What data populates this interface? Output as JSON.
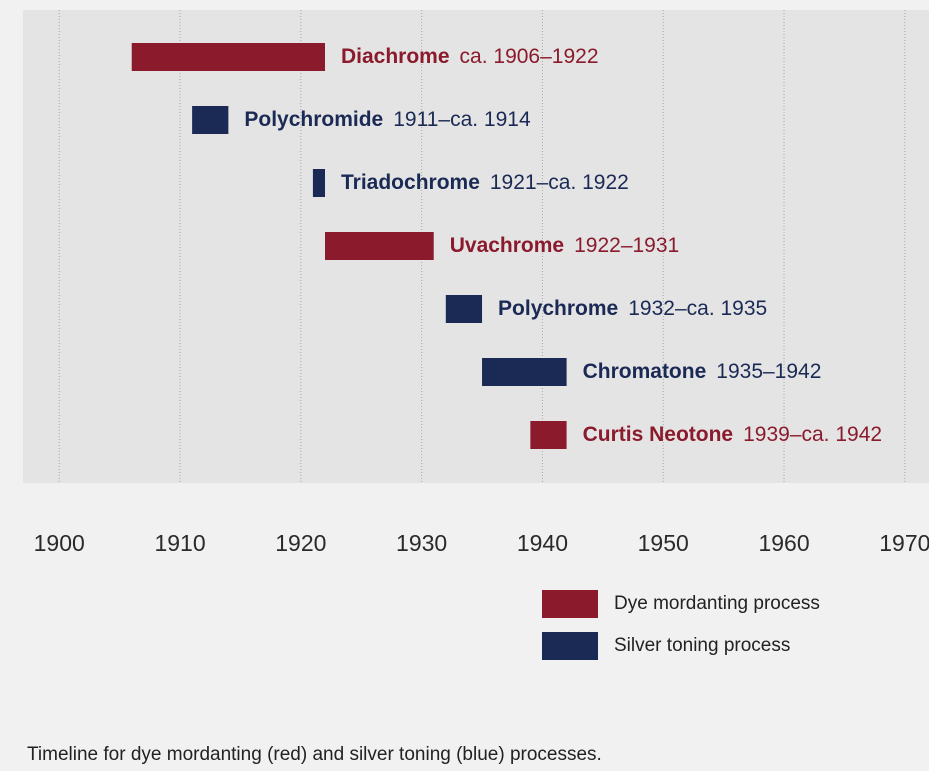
{
  "chart_data": {
    "type": "timeline",
    "caption": "Timeline for dye mordanting (red) and silver toning (blue) processes.",
    "categories": [
      "Diachrome",
      "Polychromide",
      "Triadochrome",
      "Uvachrome",
      "Polychrome",
      "Chromatone",
      "Curtis Neotone"
    ],
    "date_labels": [
      "ca. 1906–1922",
      "1911–ca. 1914",
      "1921–ca. 1922",
      "1922–1931",
      "1932–ca. 1935",
      "1935–1942",
      "1939–ca. 1942"
    ],
    "start": [
      1906,
      1911,
      1921,
      1922,
      1932,
      1935,
      1939
    ],
    "end": [
      1922,
      1914,
      1922,
      1931,
      1935,
      1942,
      1942
    ],
    "colors": [
      "#8a1a2c",
      "#1b2a55",
      "#1b2a55",
      "#8a1a2c",
      "#1b2a55",
      "#1b2a55",
      "#8a1a2c"
    ],
    "series": [
      {
        "name": "Dye mordanting process",
        "color": "#8a1a2c"
      },
      {
        "name": "Silver toning process",
        "color": "#1b2a55"
      }
    ],
    "xlim": [
      1897,
      1972
    ],
    "xticks": [
      1900,
      1910,
      1920,
      1930,
      1940,
      1950,
      1960,
      1970
    ],
    "grid": true
  }
}
